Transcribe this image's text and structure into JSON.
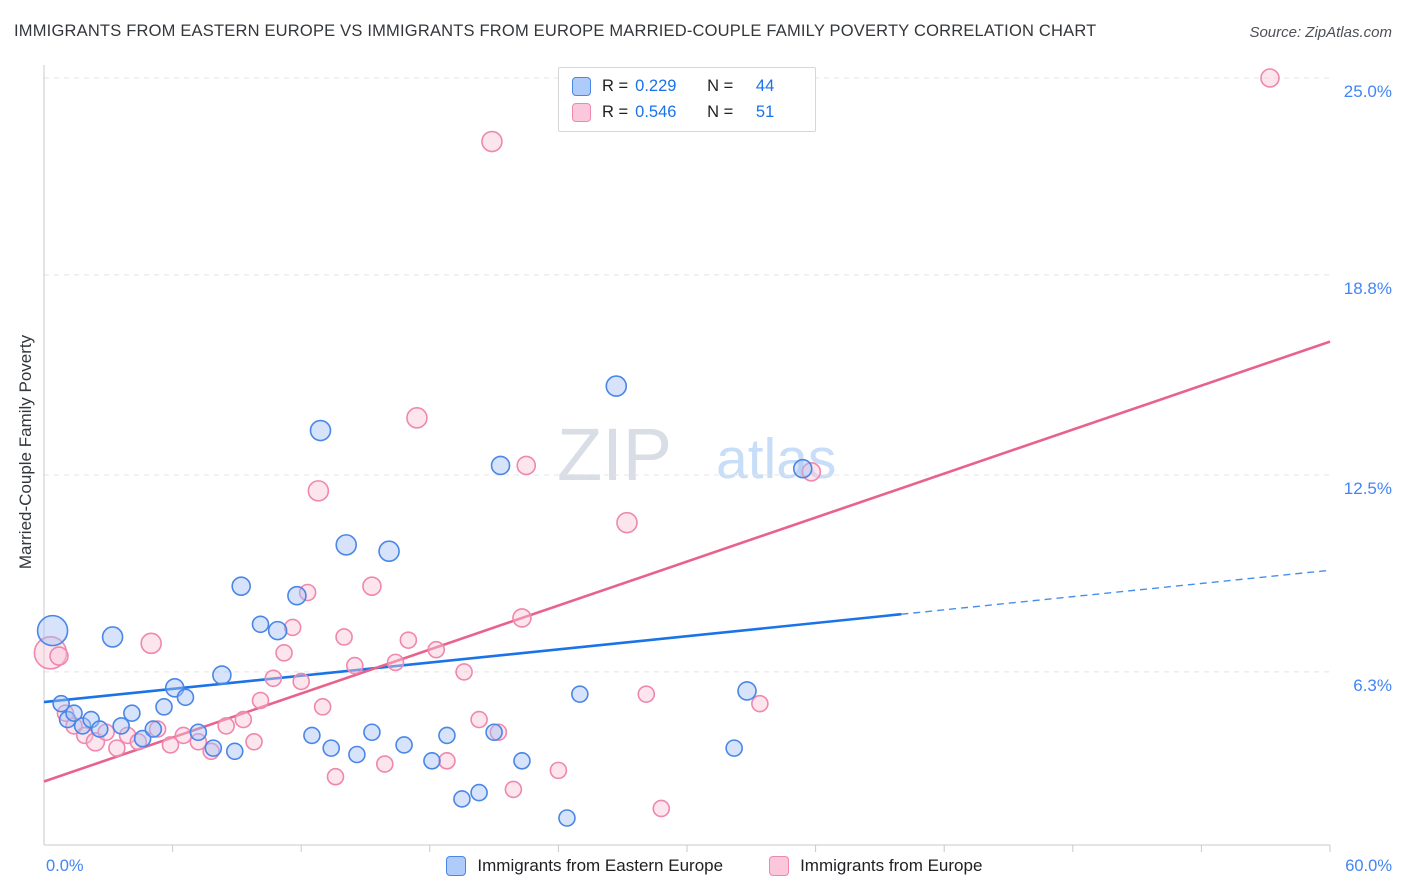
{
  "header": {
    "title": "IMMIGRANTS FROM EASTERN EUROPE VS IMMIGRANTS FROM EUROPE MARRIED-COUPLE FAMILY POVERTY CORRELATION CHART",
    "source": "Source: ZipAtlas.com"
  },
  "correlation_legend": {
    "rows": [
      {
        "series": "Immigrants from Eastern Europe",
        "r_label": "R =",
        "r_value": "0.229",
        "n_label": "N =",
        "n_value": "44"
      },
      {
        "series": "Immigrants from Europe",
        "r_label": "R =",
        "r_value": "0.546",
        "n_label": "N =",
        "n_value": "51"
      }
    ]
  },
  "axes": {
    "x_min_label": "0.0%",
    "x_max_label": "60.0%"
  },
  "series_legend": [
    {
      "label": "Immigrants from Eastern Europe",
      "color": "#aecbfa",
      "border": "#4a86e8"
    },
    {
      "label": "Immigrants from Europe",
      "color": "#fac8da",
      "border": "#ef87ae"
    }
  ],
  "chart_data": {
    "type": "scatter",
    "title": "IMMIGRANTS FROM EASTERN EUROPE VS IMMIGRANTS FROM EUROPE MARRIED-COUPLE FAMILY POVERTY CORRELATION CHART",
    "ylabel": "Married-Couple Family Poverty",
    "xlabel": "",
    "xlim": [
      0,
      60
    ],
    "ylim": [
      0,
      26
    ],
    "x_tick_labels": [
      "0.0%",
      "60.0%"
    ],
    "grid": "horizontal-dashed",
    "legend_position": "bottom",
    "y_gridlines": [
      {
        "value": 6.3,
        "label": "6.3%"
      },
      {
        "value": 12.5,
        "label": "12.5%"
      },
      {
        "value": 18.8,
        "label": "18.8%"
      },
      {
        "value": 25.0,
        "label": "25.0%"
      }
    ],
    "watermark": {
      "zip": "ZIP",
      "atlas": "atlas",
      "zip_color": "#d9dde5",
      "atlas_color": "#c8ddf8"
    },
    "series": [
      {
        "name": "Immigrants from Eastern Europe",
        "R": 0.229,
        "N": 44,
        "fill": "#a4c2f4",
        "stroke": "#4a86e8",
        "line_color": "#1a73e8",
        "trend": {
          "x1": 0,
          "y1": 5.35,
          "x2": 60,
          "y2": 9.5,
          "solid_until": 40
        },
        "points": [
          [
            0.4,
            7.6,
            15
          ],
          [
            0.8,
            5.3,
            8
          ],
          [
            1.1,
            4.8,
            8
          ],
          [
            1.4,
            5.0,
            8
          ],
          [
            1.8,
            4.6,
            8
          ],
          [
            2.2,
            4.8,
            8
          ],
          [
            2.6,
            4.5,
            8
          ],
          [
            3.2,
            7.4,
            10
          ],
          [
            3.6,
            4.6,
            8
          ],
          [
            4.1,
            5.0,
            8
          ],
          [
            4.6,
            4.2,
            8
          ],
          [
            5.1,
            4.5,
            8
          ],
          [
            5.6,
            5.2,
            8
          ],
          [
            6.1,
            5.8,
            9
          ],
          [
            6.6,
            5.5,
            8
          ],
          [
            7.2,
            4.4,
            8
          ],
          [
            7.9,
            3.9,
            8
          ],
          [
            8.3,
            6.2,
            9
          ],
          [
            8.9,
            3.8,
            8
          ],
          [
            9.2,
            9.0,
            9
          ],
          [
            10.1,
            7.8,
            8
          ],
          [
            10.9,
            7.6,
            9
          ],
          [
            11.8,
            8.7,
            9
          ],
          [
            12.5,
            4.3,
            8
          ],
          [
            12.9,
            13.9,
            10
          ],
          [
            13.4,
            3.9,
            8
          ],
          [
            14.1,
            10.3,
            10
          ],
          [
            14.6,
            3.7,
            8
          ],
          [
            15.3,
            4.4,
            8
          ],
          [
            16.1,
            10.1,
            10
          ],
          [
            16.8,
            4.0,
            8
          ],
          [
            18.1,
            3.5,
            8
          ],
          [
            18.8,
            4.3,
            8
          ],
          [
            19.5,
            2.3,
            8
          ],
          [
            20.3,
            2.5,
            8
          ],
          [
            21.0,
            4.4,
            8
          ],
          [
            21.3,
            12.8,
            9
          ],
          [
            22.3,
            3.5,
            8
          ],
          [
            24.4,
            1.7,
            8
          ],
          [
            25.0,
            5.6,
            8
          ],
          [
            26.7,
            15.3,
            10
          ],
          [
            32.2,
            3.9,
            8
          ],
          [
            32.8,
            5.7,
            9
          ],
          [
            35.4,
            12.7,
            9
          ]
        ]
      },
      {
        "name": "Immigrants from Europe",
        "R": 0.546,
        "N": 51,
        "fill": "#f9c6d8",
        "stroke": "#ef87ae",
        "line_color": "#e8638c",
        "trend": {
          "x1": 0,
          "y1": 2.85,
          "x2": 60,
          "y2": 16.7
        },
        "points": [
          [
            0.3,
            6.9,
            16
          ],
          [
            0.7,
            6.8,
            9
          ],
          [
            1.0,
            5.0,
            8
          ],
          [
            1.4,
            4.6,
            8
          ],
          [
            1.9,
            4.3,
            8
          ],
          [
            2.4,
            4.1,
            9
          ],
          [
            2.9,
            4.4,
            8
          ],
          [
            3.4,
            3.9,
            8
          ],
          [
            3.9,
            4.3,
            8
          ],
          [
            4.4,
            4.1,
            8
          ],
          [
            5.0,
            7.2,
            10
          ],
          [
            5.3,
            4.5,
            8
          ],
          [
            5.9,
            4.0,
            8
          ],
          [
            6.5,
            4.3,
            8
          ],
          [
            7.2,
            4.1,
            8
          ],
          [
            7.8,
            3.8,
            8
          ],
          [
            8.5,
            4.6,
            8
          ],
          [
            9.3,
            4.8,
            8
          ],
          [
            9.8,
            4.1,
            8
          ],
          [
            10.1,
            5.4,
            8
          ],
          [
            10.7,
            6.1,
            8
          ],
          [
            11.2,
            6.9,
            8
          ],
          [
            11.6,
            7.7,
            8
          ],
          [
            12.0,
            6.0,
            8
          ],
          [
            12.3,
            8.8,
            8
          ],
          [
            12.8,
            12.0,
            10
          ],
          [
            13.0,
            5.2,
            8
          ],
          [
            13.6,
            3.0,
            8
          ],
          [
            14.0,
            7.4,
            8
          ],
          [
            14.5,
            6.5,
            8
          ],
          [
            15.3,
            9.0,
            9
          ],
          [
            15.9,
            3.4,
            8
          ],
          [
            16.4,
            6.6,
            8
          ],
          [
            17.0,
            7.3,
            8
          ],
          [
            17.4,
            14.3,
            10
          ],
          [
            18.3,
            7.0,
            8
          ],
          [
            18.8,
            3.5,
            8
          ],
          [
            19.6,
            6.3,
            8
          ],
          [
            20.3,
            4.8,
            8
          ],
          [
            20.9,
            23.0,
            10
          ],
          [
            21.2,
            4.4,
            8
          ],
          [
            21.9,
            2.6,
            8
          ],
          [
            22.3,
            8.0,
            9
          ],
          [
            22.5,
            12.8,
            9
          ],
          [
            24.0,
            3.2,
            8
          ],
          [
            27.2,
            11.0,
            10
          ],
          [
            28.1,
            5.6,
            8
          ],
          [
            28.8,
            2.0,
            8
          ],
          [
            33.4,
            5.3,
            8
          ],
          [
            35.8,
            12.6,
            9
          ],
          [
            57.2,
            25.0,
            9
          ]
        ]
      }
    ]
  }
}
